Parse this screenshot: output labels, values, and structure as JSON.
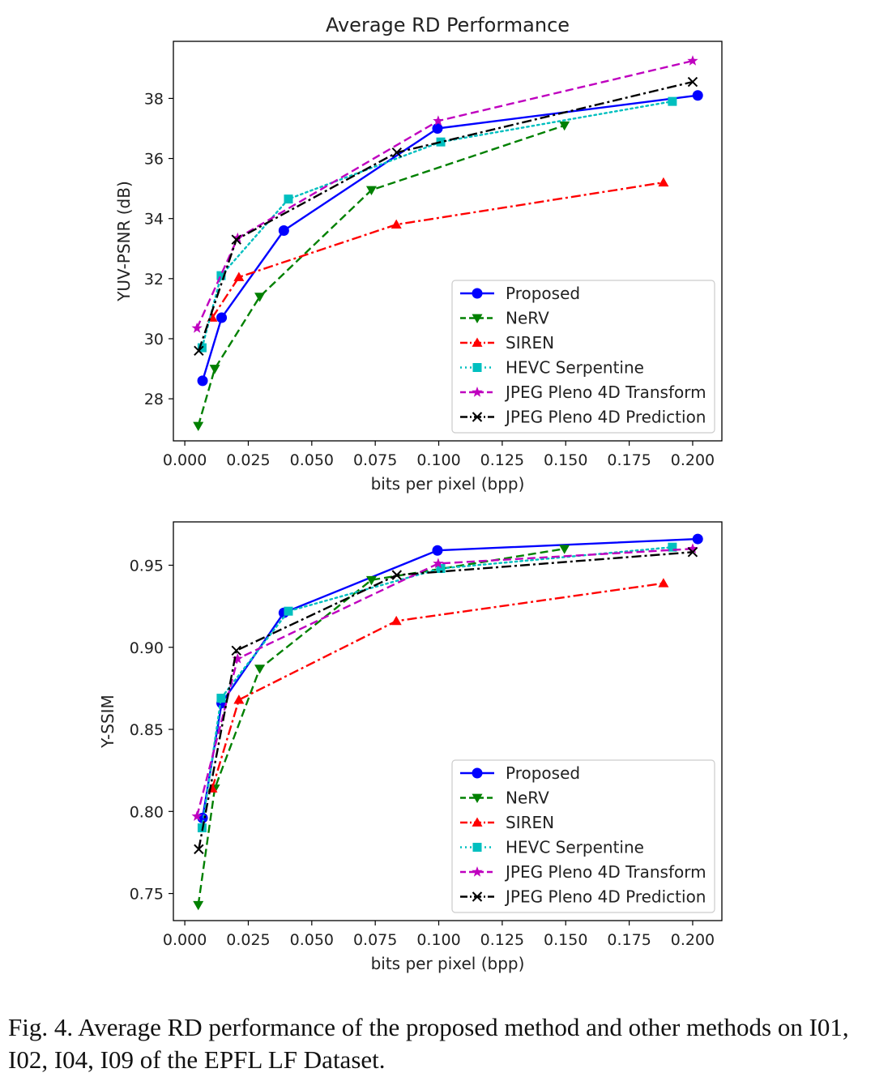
{
  "figure": {
    "caption": "Fig. 4.  Average RD performance of the proposed method and other methods on I01, I02, I04, I09 of the EPFL LF Dataset."
  },
  "chart_data": [
    {
      "type": "line",
      "title": "Average RD Performance",
      "xlabel": "bits per pixel (bpp)",
      "ylabel": "YUV-PSNR (dB)",
      "xlim": [
        -0.0045,
        0.2115
      ],
      "ylim": [
        26.6,
        39.9
      ],
      "xticks": [
        0.0,
        0.025,
        0.05,
        0.075,
        0.1,
        0.125,
        0.15,
        0.175,
        0.2
      ],
      "xticklabels": [
        "0.000",
        "0.025",
        "0.050",
        "0.075",
        "0.100",
        "0.125",
        "0.150",
        "0.175",
        "0.200"
      ],
      "yticks": [
        28,
        30,
        32,
        34,
        36,
        38
      ],
      "yticklabels": [
        "28",
        "30",
        "32",
        "34",
        "36",
        "38"
      ],
      "legend_position": "lower-right",
      "series": [
        {
          "name": "Proposed",
          "color": "#0000ff",
          "dash": "solid",
          "marker": "circle",
          "x": [
            0.007,
            0.0145,
            0.039,
            0.0995,
            0.202
          ],
          "y": [
            28.6,
            30.7,
            33.6,
            37.0,
            38.1
          ]
        },
        {
          "name": "NeRV",
          "color": "#008000",
          "dash": "dashed",
          "marker": "triangle-down",
          "x": [
            0.0053,
            0.0118,
            0.0295,
            0.0735,
            0.1495
          ],
          "y": [
            27.1,
            29.0,
            31.4,
            34.95,
            37.1
          ]
        },
        {
          "name": "SIREN",
          "color": "#ff0000",
          "dash": "dashdot",
          "marker": "triangle-up",
          "x": [
            0.0108,
            0.0213,
            0.0833,
            0.1885
          ],
          "y": [
            30.7,
            32.05,
            33.8,
            35.2
          ]
        },
        {
          "name": "HEVC Serpentine",
          "color": "#00bfbf",
          "dash": "dotted",
          "marker": "square",
          "x": [
            0.0068,
            0.0143,
            0.0408,
            0.1008,
            0.192
          ],
          "y": [
            29.7,
            32.1,
            34.65,
            36.55,
            37.9
          ]
        },
        {
          "name": "JPEG Pleno 4D Transform",
          "color": "#bf00bf",
          "dash": "dashed",
          "marker": "star",
          "x": [
            0.0048,
            0.0208,
            0.0998,
            0.2
          ],
          "y": [
            30.35,
            33.35,
            37.25,
            39.25
          ]
        },
        {
          "name": "JPEG Pleno 4D Prediction",
          "color": "#000000",
          "dash": "dashdot",
          "marker": "x",
          "x": [
            0.0055,
            0.0203,
            0.0835,
            0.2
          ],
          "y": [
            29.6,
            33.3,
            36.2,
            38.55
          ]
        }
      ]
    },
    {
      "type": "line",
      "title": "",
      "xlabel": "bits per pixel (bpp)",
      "ylabel": "Y-SSIM",
      "xlim": [
        -0.0045,
        0.2115
      ],
      "ylim": [
        0.7335,
        0.9764
      ],
      "xticks": [
        0.0,
        0.025,
        0.05,
        0.075,
        0.1,
        0.125,
        0.15,
        0.175,
        0.2
      ],
      "xticklabels": [
        "0.000",
        "0.025",
        "0.050",
        "0.075",
        "0.100",
        "0.125",
        "0.150",
        "0.175",
        "0.200"
      ],
      "yticks": [
        0.75,
        0.8,
        0.85,
        0.9,
        0.95
      ],
      "yticklabels": [
        "0.75",
        "0.80",
        "0.85",
        "0.90",
        "0.95"
      ],
      "legend_position": "lower-right",
      "series": [
        {
          "name": "Proposed",
          "color": "#0000ff",
          "dash": "solid",
          "marker": "circle",
          "x": [
            0.007,
            0.0145,
            0.039,
            0.0995,
            0.202
          ],
          "y": [
            0.796,
            0.866,
            0.921,
            0.959,
            0.966
          ]
        },
        {
          "name": "NeRV",
          "color": "#008000",
          "dash": "dashed",
          "marker": "triangle-down",
          "x": [
            0.0053,
            0.0118,
            0.0295,
            0.0735,
            0.1495
          ],
          "y": [
            0.743,
            0.814,
            0.887,
            0.941,
            0.96
          ]
        },
        {
          "name": "SIREN",
          "color": "#ff0000",
          "dash": "dashdot",
          "marker": "triangle-up",
          "x": [
            0.0108,
            0.0213,
            0.0833,
            0.1885
          ],
          "y": [
            0.814,
            0.868,
            0.916,
            0.939
          ]
        },
        {
          "name": "HEVC Serpentine",
          "color": "#00bfbf",
          "dash": "dotted",
          "marker": "square",
          "x": [
            0.0068,
            0.0143,
            0.0408,
            0.1008,
            0.192
          ],
          "y": [
            0.79,
            0.869,
            0.922,
            0.948,
            0.961
          ]
        },
        {
          "name": "JPEG Pleno 4D Transform",
          "color": "#bf00bf",
          "dash": "dashed",
          "marker": "star",
          "x": [
            0.0048,
            0.0208,
            0.0998,
            0.2
          ],
          "y": [
            0.797,
            0.893,
            0.951,
            0.96
          ]
        },
        {
          "name": "JPEG Pleno 4D Prediction",
          "color": "#000000",
          "dash": "dashdot",
          "marker": "x",
          "x": [
            0.0055,
            0.0203,
            0.0835,
            0.2
          ],
          "y": [
            0.777,
            0.898,
            0.944,
            0.958
          ]
        }
      ]
    }
  ]
}
